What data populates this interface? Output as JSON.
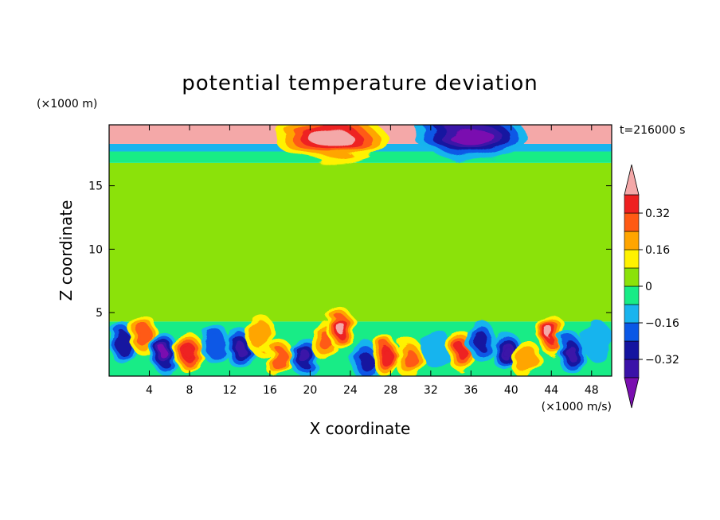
{
  "chart_data": {
    "type": "heatmap",
    "title": "potential temperature deviation",
    "xlabel": "X coordinate",
    "ylabel": "Z coordinate",
    "x_unit": "(×1000 m/s)",
    "y_unit": "(×1000 m)",
    "time_label": "t=216000 s",
    "xlim": [
      0,
      50
    ],
    "ylim": [
      0,
      19.8
    ],
    "x_ticks": [
      4,
      8,
      12,
      16,
      20,
      24,
      28,
      32,
      36,
      40,
      44,
      48
    ],
    "y_ticks": [
      5,
      10,
      15
    ],
    "colorbar": {
      "levels": [
        -0.4,
        -0.32,
        -0.24,
        -0.16,
        -0.08,
        0,
        0.08,
        0.16,
        0.24,
        0.32,
        0.4
      ],
      "tick_labels": [
        "0.32",
        "0.16",
        "0",
        "−0.16",
        "−0.32"
      ],
      "tick_values": [
        0.32,
        0.16,
        0,
        -0.16,
        -0.32
      ],
      "colors": [
        "#7a0fb0",
        "#3a12a8",
        "#1414a0",
        "#0a58e6",
        "#19b4ee",
        "#18ec86",
        "#8be20a",
        "#fff200",
        "#ffa500",
        "#ff5a14",
        "#ee2020",
        "#f4a8a8"
      ]
    },
    "background_bands": [
      {
        "z": [
          0,
          4.3
        ],
        "value": -0.05
      },
      {
        "z": [
          4.3,
          16.8
        ],
        "value": 0.02
      },
      {
        "z": [
          16.8,
          17.7
        ],
        "value": -0.02
      },
      {
        "z": [
          17.7,
          18.3
        ],
        "value": -0.14
      },
      {
        "z": [
          18.3,
          19.8
        ],
        "value": 0.45
      }
    ],
    "blobs": [
      {
        "x": 1.5,
        "z": 2.5,
        "value": -0.3
      },
      {
        "x": 3.5,
        "z": 3.2,
        "value": 0.28
      },
      {
        "x": 5.5,
        "z": 1.8,
        "value": -0.4
      },
      {
        "x": 8,
        "z": 1.8,
        "value": 0.36
      },
      {
        "x": 10.5,
        "z": 2.6,
        "value": -0.2
      },
      {
        "x": 13,
        "z": 2.2,
        "value": -0.35
      },
      {
        "x": 15,
        "z": 3.3,
        "value": 0.2
      },
      {
        "x": 17,
        "z": 1.3,
        "value": 0.3
      },
      {
        "x": 19.5,
        "z": 1.5,
        "value": -0.35
      },
      {
        "x": 21.5,
        "z": 2.8,
        "value": 0.25
      },
      {
        "x": 23,
        "z": 3.8,
        "value": 0.4
      },
      {
        "x": 25.5,
        "z": 1.2,
        "value": -0.25
      },
      {
        "x": 27.5,
        "z": 1.6,
        "value": 0.38
      },
      {
        "x": 30,
        "z": 1.3,
        "value": 0.25
      },
      {
        "x": 32.5,
        "z": 2.2,
        "value": -0.15
      },
      {
        "x": 35,
        "z": 2.0,
        "value": 0.34
      },
      {
        "x": 37,
        "z": 2.8,
        "value": -0.25
      },
      {
        "x": 39.5,
        "z": 2.0,
        "value": -0.38
      },
      {
        "x": 41.5,
        "z": 1.3,
        "value": 0.2
      },
      {
        "x": 44,
        "z": 3.3,
        "value": 0.42
      },
      {
        "x": 46,
        "z": 1.8,
        "value": -0.32
      },
      {
        "x": 48.5,
        "z": 2.8,
        "value": -0.12
      },
      {
        "x": 22,
        "z": 18.8,
        "value": 0.45
      },
      {
        "x": 36,
        "z": 18.9,
        "value": -0.45
      }
    ]
  }
}
